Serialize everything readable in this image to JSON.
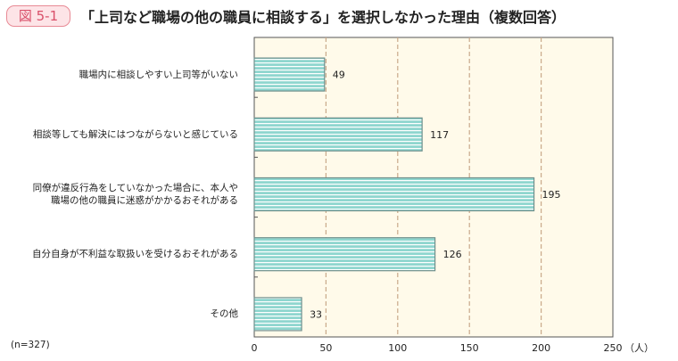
{
  "figure_label": "図 5-1",
  "chart_data": {
    "type": "bar",
    "orientation": "horizontal",
    "title": "「上司など職場の他の職員に相談する」を選択しなかった理由（複数回答）",
    "categories": [
      "職場内に相談しやすい上司等がいない",
      "相談等しても解決にはつながらないと感じている",
      "同僚が違反行為をしていなかった場合に、本人や職場の他の職員に迷惑がかかるおそれがある",
      "自分自身が不利益な取扱いを受けるおそれがある",
      "その他"
    ],
    "category_lines": [
      [
        "職場内に相談しやすい上司等がいない"
      ],
      [
        "相談等しても解決にはつながらないと感じている"
      ],
      [
        "同僚が違反行為をしていなかった場合に、本人や",
        "職場の他の職員に迷惑がかかるおそれがある"
      ],
      [
        "自分自身が不利益な取扱いを受けるおそれがある"
      ],
      [
        "その他"
      ]
    ],
    "values": [
      49,
      117,
      195,
      126,
      33
    ],
    "xlim": [
      0,
      250
    ],
    "xticks": [
      "0",
      "50",
      "100",
      "150",
      "200",
      "250"
    ],
    "xunit": "（人）",
    "grid": true,
    "note": "(n=327)",
    "colors": {
      "bar": "#8fd6cf",
      "bar_stripe": "#ffffff",
      "bar_border": "#6f8f8c",
      "plot_bg": "#fffaea",
      "grid": "#c9a98a"
    }
  }
}
